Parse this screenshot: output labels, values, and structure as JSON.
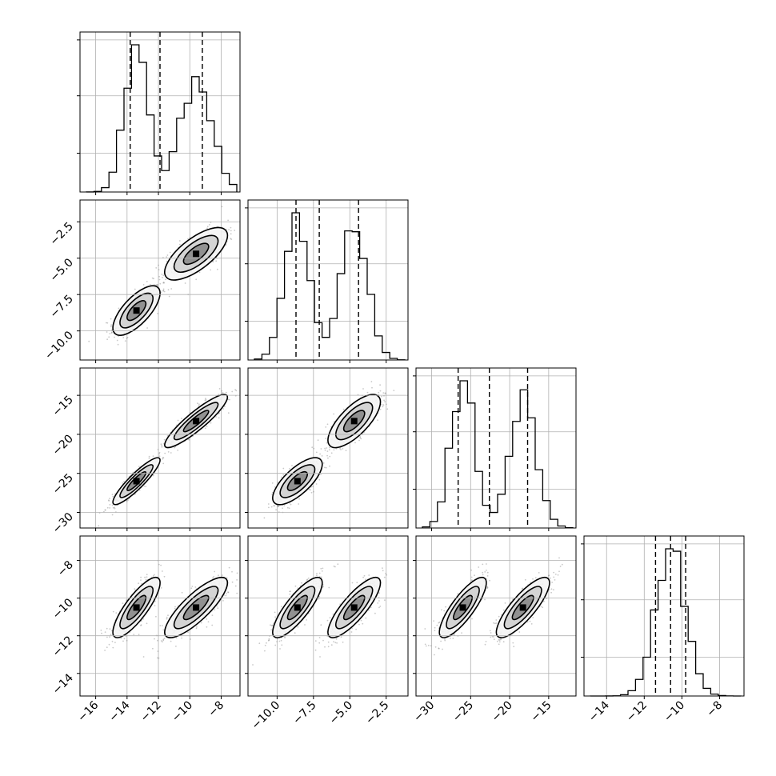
{
  "chart_data": {
    "type": "corner",
    "grid": true,
    "quantile_lines": "dashed",
    "parameters": [
      {
        "range": [
          -17,
          -6.8
        ],
        "ticks": [
          -16,
          -14,
          -12,
          -10,
          -8
        ],
        "tick_labels": [
          "−16",
          "−14",
          "−12",
          "−10",
          "−8"
        ],
        "quantiles": [
          -13.8,
          -11.9,
          -9.2
        ],
        "modes": [
          {
            "mean": -13.4,
            "sd": 0.75,
            "weight": 0.5
          },
          {
            "mean": -9.6,
            "sd": 1.0,
            "weight": 0.5
          }
        ]
      },
      {
        "range": [
          -12,
          -1.0
        ],
        "ticks": [
          -10.0,
          -7.5,
          -5.0,
          -2.5
        ],
        "tick_labels": [
          "−10.0",
          "−7.5",
          "−5.0",
          "−2.5"
        ],
        "quantiles": [
          -8.7,
          -7.1,
          -4.4
        ],
        "modes": [
          {
            "mean": -8.6,
            "sd": 0.85,
            "weight": 0.5
          },
          {
            "mean": -4.7,
            "sd": 0.9,
            "weight": 0.5
          }
        ]
      },
      {
        "range": [
          -32,
          -11.5
        ],
        "ticks": [
          -30,
          -25,
          -20,
          -15
        ],
        "tick_labels": [
          "−30",
          "−25",
          "−20",
          "−15"
        ],
        "quantiles": [
          -26.6,
          -22.6,
          -17.7
        ],
        "modes": [
          {
            "mean": -26.0,
            "sd": 1.5,
            "weight": 0.5
          },
          {
            "mean": -18.3,
            "sd": 1.7,
            "weight": 0.5
          }
        ]
      },
      {
        "range": [
          -15.2,
          -6.7
        ],
        "ticks": [
          -14,
          -12,
          -10,
          -8
        ],
        "tick_labels": [
          "−14",
          "−12",
          "−10",
          "−8"
        ],
        "quantiles": [
          -11.4,
          -10.6,
          -9.8
        ],
        "modes": [
          {
            "mean": -10.6,
            "sd": 0.8,
            "weight": 1.0
          }
        ]
      }
    ],
    "clusters": [
      {
        "center": [
          -13.4,
          -8.6,
          -26.0,
          -10.5
        ],
        "weight": 0.5
      },
      {
        "center": [
          -9.6,
          -4.7,
          -18.3,
          -10.5
        ],
        "weight": 0.5
      }
    ]
  }
}
